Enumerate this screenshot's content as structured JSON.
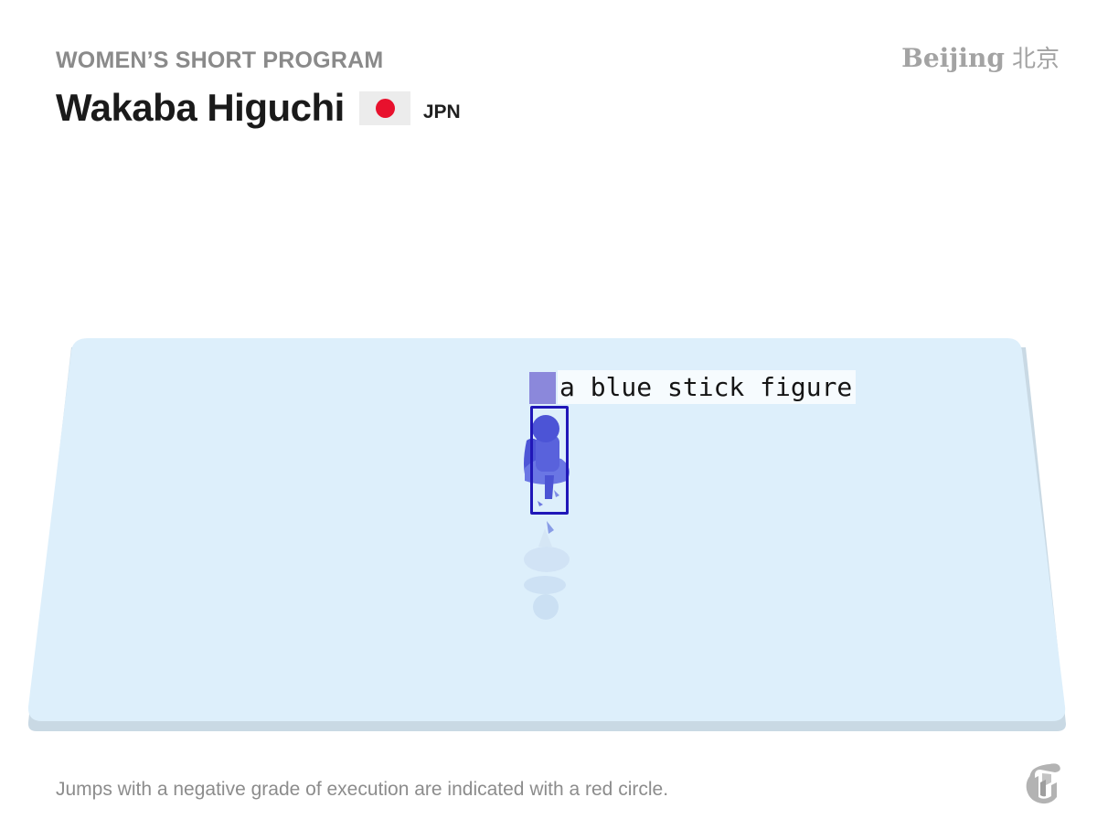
{
  "header": {
    "event": "WOMEN’S SHORT PROGRAM",
    "brand_en": "Beijing",
    "brand_zh": "北京"
  },
  "athlete": {
    "name": "Wakaba Higuchi",
    "country": "JPN"
  },
  "callout": {
    "label": "a blue stick figure"
  },
  "footer": {
    "note": "Jumps with a negative grade of execution are indicated with a red circle."
  },
  "colors": {
    "ice": "#ddeffb",
    "skater": "#4f57da",
    "highlight": "#2017b8",
    "flag_disc": "#e8112d"
  },
  "icons": {
    "logo": "nyt-logo-icon"
  }
}
